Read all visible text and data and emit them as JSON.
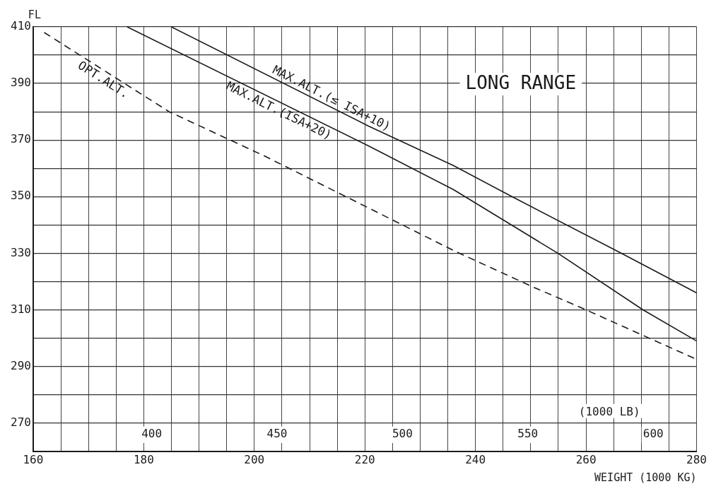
{
  "chart_data": {
    "type": "line",
    "title": "LONG RANGE",
    "xlabel": "WEIGHT (1000 KG)",
    "ylabel": "FL",
    "x2label": "(1000 LB)",
    "xlim": [
      160,
      280
    ],
    "xticks": [
      160,
      {
        "value": 165,
        "label": null
      },
      {
        "value": 170,
        "label": null
      },
      {
        "value": 175,
        "label": null
      },
      180,
      {
        "value": 185,
        "label": null
      },
      {
        "value": 190,
        "label": null
      },
      {
        "value": 195,
        "label": null
      },
      200,
      {
        "value": 205,
        "label": null
      },
      {
        "value": 210,
        "label": null
      },
      {
        "value": 215,
        "label": null
      },
      220,
      {
        "value": 225,
        "label": null
      },
      {
        "value": 230,
        "label": null
      },
      {
        "value": 235,
        "label": null
      },
      240,
      {
        "value": 245,
        "label": null
      },
      {
        "value": 250,
        "label": null
      },
      {
        "value": 255,
        "label": null
      },
      260,
      {
        "value": 265,
        "label": null
      },
      {
        "value": 270,
        "label": null
      },
      {
        "value": 275,
        "label": null
      },
      280
    ],
    "ylim": [
      260,
      410
    ],
    "yticks": [
      {
        "value": 260,
        "label": null
      },
      270,
      {
        "value": 280,
        "label": null
      },
      290,
      {
        "value": 300,
        "label": null
      },
      310,
      {
        "value": 320,
        "label": null
      },
      330,
      {
        "value": 340,
        "label": null
      },
      350,
      {
        "value": 360,
        "label": null
      },
      370,
      {
        "value": 380,
        "label": null
      },
      390,
      {
        "value": 400,
        "label": null
      },
      410
    ],
    "x2lim": [
      352.74,
      617.29
    ],
    "x2ticks": [
      400,
      450,
      500,
      550,
      600
    ],
    "grid": true,
    "legend": false,
    "marker": "none",
    "series": [
      {
        "name": "MAX.ALT.(≤ ISA+10)",
        "color": "#1a1a1a",
        "line_style": "solid",
        "x": [
          185,
          220.6,
          236,
          246.6,
          266.4,
          280
        ],
        "values": [
          410,
          375,
          361,
          350,
          330,
          316
        ]
      },
      {
        "name": "MAX.ALT.(ISA+20)",
        "color": "#1a1a1a",
        "line_style": "solid",
        "x": [
          177,
          220.6,
          236,
          254.9,
          270.3,
          280
        ],
        "values": [
          410,
          368,
          352.5,
          330,
          310,
          299
        ]
      },
      {
        "name": "OPT.ALT.",
        "color": "#1a1a1a",
        "line_style": "dashed",
        "x": [
          162,
          184.6,
          201.7,
          217.6,
          236,
          250.5,
          260,
          280
        ],
        "values": [
          408,
          380,
          364.5,
          349,
          331,
          318,
          310,
          292.5
        ]
      }
    ]
  }
}
